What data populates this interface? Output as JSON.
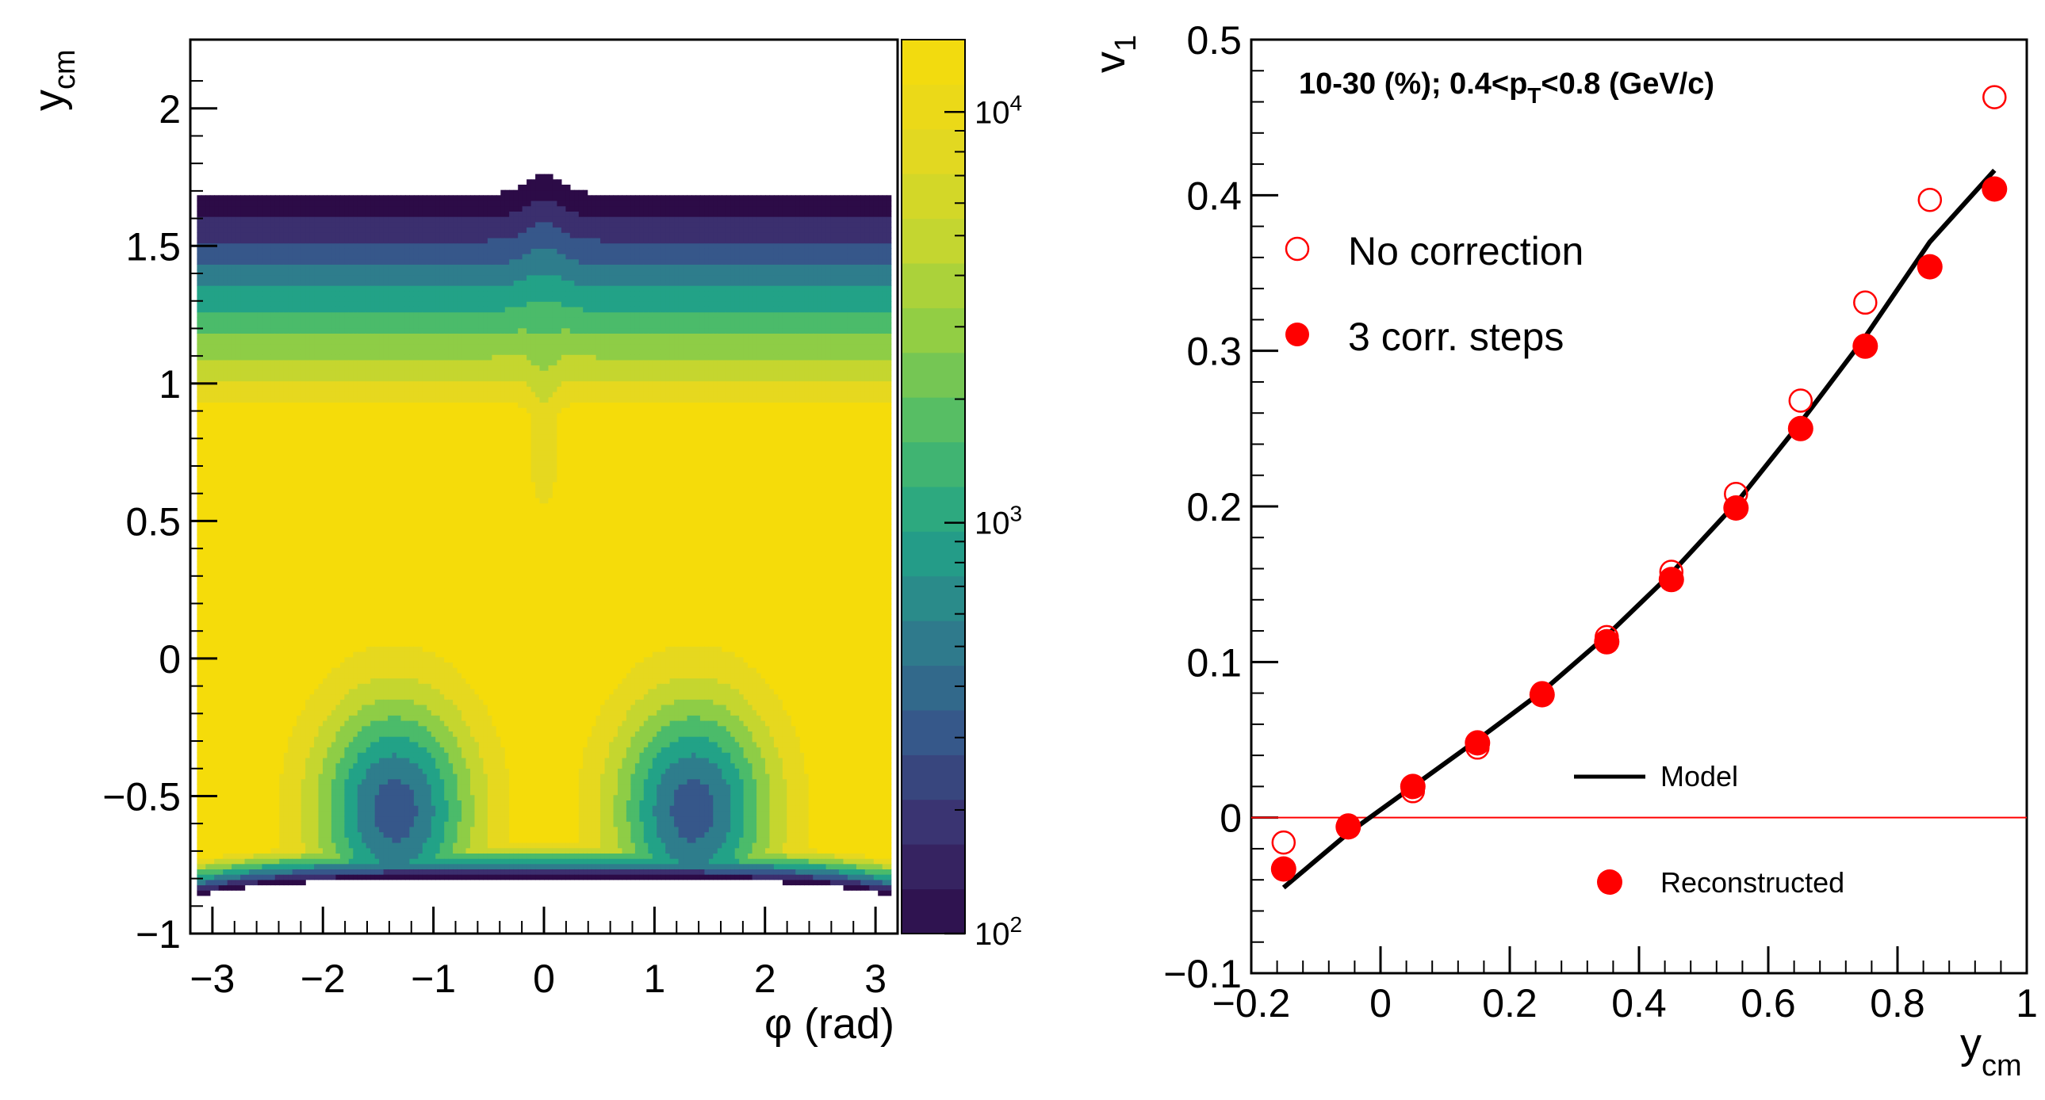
{
  "chart_data": [
    {
      "type": "heatmap",
      "xlabel": "φ (rad)",
      "ylabel": "y",
      "ylabel_sub": "cm",
      "xlim": [
        -3.2,
        3.2
      ],
      "ylim": [
        -1.0,
        2.25
      ],
      "x_ticks": [
        "−3",
        "−2",
        "−1",
        "0",
        "1",
        "2",
        "3"
      ],
      "x_tick_values": [
        -3,
        -2,
        -1,
        0,
        1,
        2,
        3
      ],
      "y_ticks": [
        "−1",
        "−0.5",
        "0",
        "0.5",
        "1",
        "1.5",
        "2"
      ],
      "y_tick_values": [
        -1,
        -0.5,
        0,
        0.5,
        1,
        1.5,
        2
      ],
      "colorbar": {
        "scale": "log",
        "range": [
          100,
          15000
        ],
        "tick_base": [
          "10",
          "10",
          "10"
        ],
        "tick_exp": [
          "2",
          "3",
          "4"
        ],
        "tick_values": [
          100,
          1000,
          10000
        ]
      },
      "data_extent": {
        "phi": [
          -3.14,
          3.14
        ],
        "y": [
          -0.85,
          1.7
        ]
      }
    },
    {
      "type": "scatter",
      "title": "10-30 (%); 0.4<p",
      "title_sub": "T",
      "title_tail": "<0.8 (GeV/c)",
      "xlabel": "y",
      "xlabel_sub": "cm",
      "ylabel": "v",
      "ylabel_sub": "1",
      "xlim": [
        -0.2,
        1.0
      ],
      "ylim": [
        -0.1,
        0.5
      ],
      "x_ticks": [
        "−0.2",
        "0",
        "0.2",
        "0.4",
        "0.6",
        "0.8",
        "1"
      ],
      "x_tick_values": [
        -0.2,
        0,
        0.2,
        0.4,
        0.6,
        0.8,
        1.0
      ],
      "y_ticks": [
        "−0.1",
        "0",
        "0.1",
        "0.2",
        "0.3",
        "0.4",
        "0.5"
      ],
      "y_tick_values": [
        -0.1,
        0,
        0.1,
        0.2,
        0.3,
        0.4,
        0.5
      ],
      "x": [
        -0.15,
        -0.05,
        0.05,
        0.15,
        0.25,
        0.35,
        0.45,
        0.55,
        0.65,
        0.75,
        0.85,
        0.95
      ],
      "series": [
        {
          "name": "No correction",
          "marker": "open-circle",
          "color": "#ff0000",
          "values": [
            -0.016,
            -0.005,
            0.017,
            0.045,
            0.08,
            0.116,
            0.158,
            0.208,
            0.268,
            0.331,
            0.397,
            0.463
          ]
        },
        {
          "name": "3 corr. steps",
          "marker": "filled-circle",
          "color": "#ff0000",
          "values": [
            -0.033,
            -0.006,
            0.02,
            0.048,
            0.079,
            0.113,
            0.153,
            0.199,
            0.25,
            0.303,
            0.354,
            0.404
          ]
        },
        {
          "name": "Model",
          "marker": "line",
          "color": "#000000",
          "x": [
            -0.15,
            -0.05,
            0.05,
            0.15,
            0.25,
            0.35,
            0.45,
            0.55,
            0.65,
            0.75,
            0.85,
            0.95
          ],
          "values": [
            -0.045,
            -0.01,
            0.02,
            0.05,
            0.081,
            0.117,
            0.157,
            0.202,
            0.254,
            0.309,
            0.37,
            0.416
          ]
        }
      ],
      "reference_line": {
        "y": 0,
        "color": "#ff0000"
      },
      "legend_top": [
        "No correction",
        "3 corr. steps"
      ],
      "legend_bottom": [
        "Model",
        "Reconstructed"
      ]
    }
  ]
}
